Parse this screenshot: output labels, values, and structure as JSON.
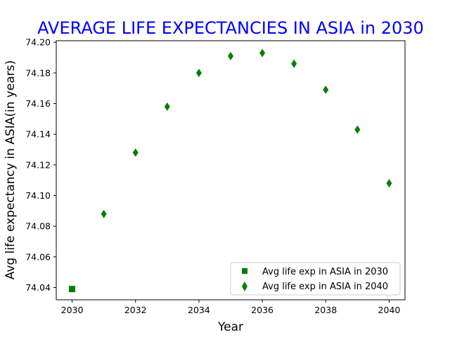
{
  "chart_data": {
    "type": "scatter",
    "title": "AVERAGE LIFE EXPECTANCIES IN ASIA in 2030",
    "title_color": "#0000ff",
    "xlabel": "Year",
    "ylabel": "Avg life expectancy in ASIA(in years)",
    "xlim": [
      2029.5,
      2040.5
    ],
    "ylim": [
      74.032,
      74.201
    ],
    "xticks": [
      2030,
      2032,
      2034,
      2036,
      2038,
      2040
    ],
    "yticks": [
      74.04,
      74.06,
      74.08,
      74.1,
      74.12,
      74.14,
      74.16,
      74.18,
      74.2
    ],
    "grid": false,
    "legend_position": "lower-right",
    "series": [
      {
        "name": "Avg life exp in ASIA in 2030",
        "marker": "square",
        "color": "#008000",
        "x": [
          2030
        ],
        "y": [
          74.039
        ]
      },
      {
        "name": "Avg life exp in ASIA in 2040",
        "marker": "thin-diamond",
        "color": "#008000",
        "x": [
          2031,
          2032,
          2033,
          2034,
          2035,
          2036,
          2037,
          2038,
          2039,
          2040
        ],
        "y": [
          74.088,
          74.128,
          74.158,
          74.18,
          74.191,
          74.193,
          74.186,
          74.169,
          74.143,
          74.108
        ]
      }
    ]
  }
}
